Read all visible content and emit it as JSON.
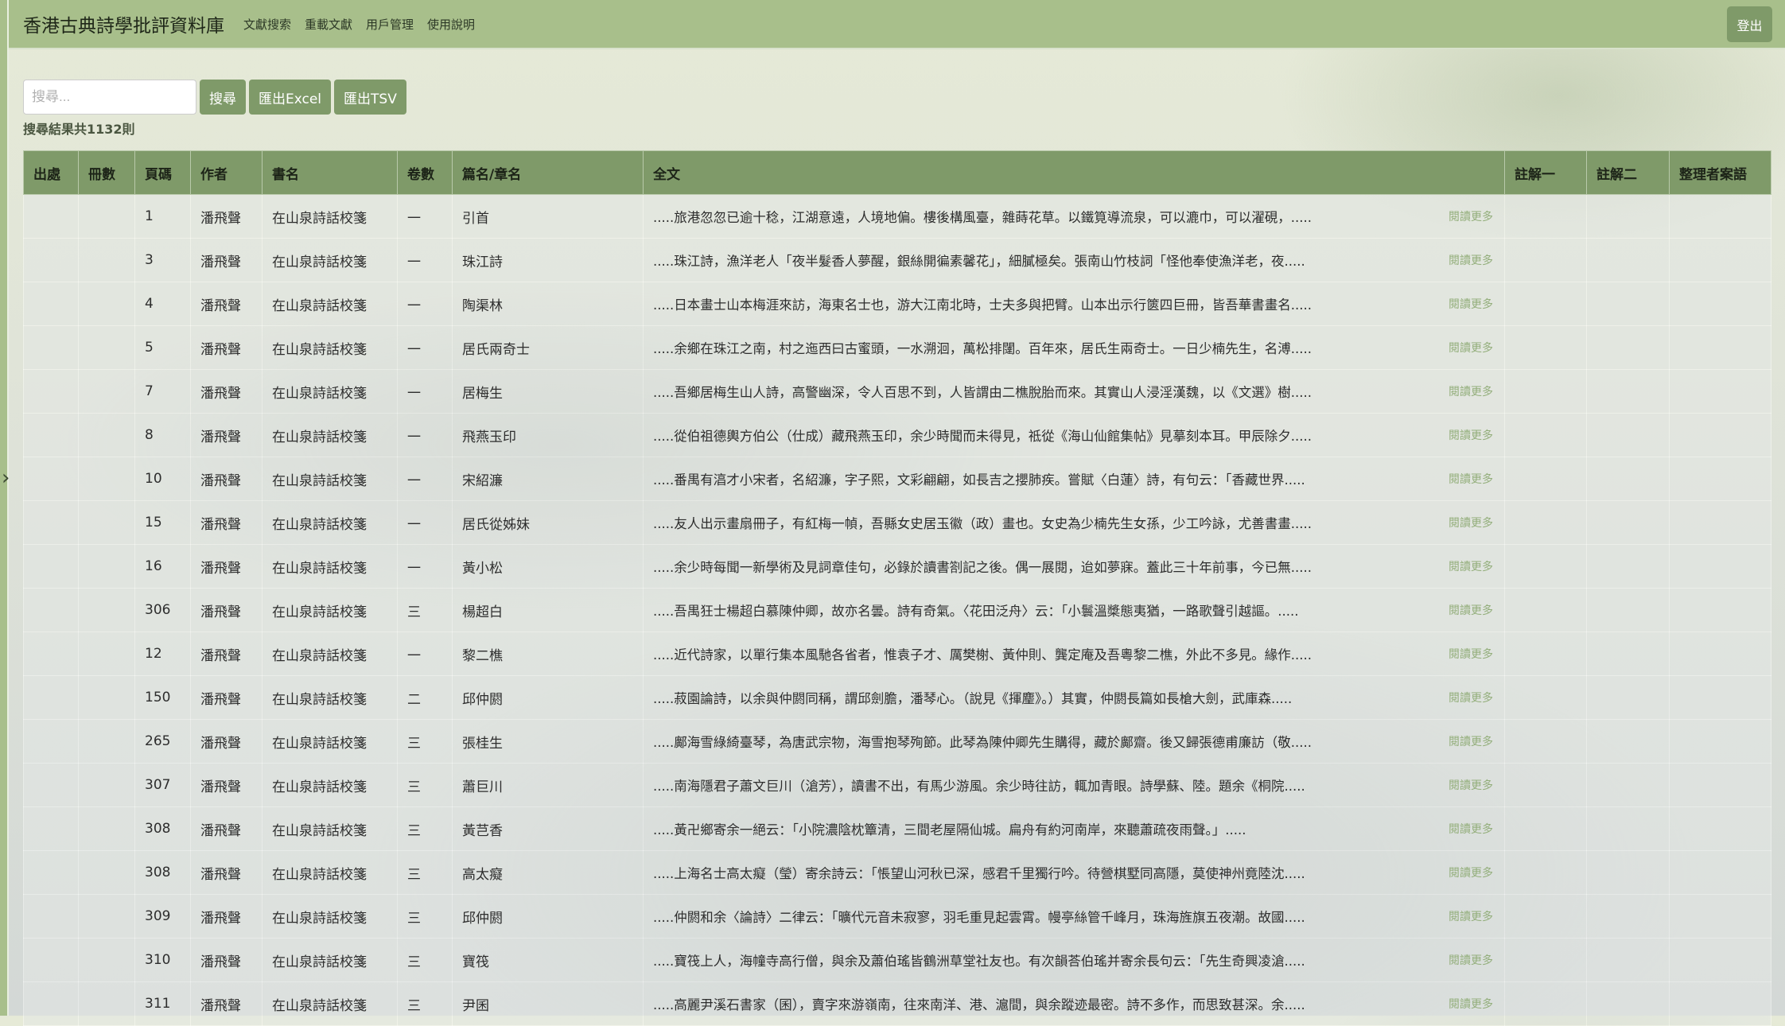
{
  "nav": {
    "title": "香港古典詩學批評資料庫",
    "links": [
      "文獻搜索",
      "重載文獻",
      "用戶管理",
      "使用說明"
    ],
    "logout": "登出"
  },
  "search": {
    "placeholder": "搜尋...",
    "value": "",
    "search_button": "搜尋",
    "export_excel": "匯出Excel",
    "export_tsv": "匯出TSV",
    "result_count": "搜尋結果共1132則"
  },
  "table": {
    "columns": [
      "出處",
      "冊數",
      "頁碼",
      "作者",
      "書名",
      "卷數",
      "篇名/章名",
      "全文",
      "註解一",
      "註解二",
      "整理者案語"
    ],
    "read_more": "閱讀更多",
    "rows": [
      {
        "source": "",
        "volume": "",
        "page": "1",
        "author": "潘飛聲",
        "book": "在山泉詩話校箋",
        "juan": "一",
        "title": "引首",
        "text": ".....旅港忽忽已逾十稔，江湖意遠，人境地偏。樓後構風臺，雜蒔花草。以鐵筧導流泉，可以漉巾，可以濯硯，.....",
        "note1": "",
        "note2": "",
        "editor_note": ""
      },
      {
        "source": "",
        "volume": "",
        "page": "3",
        "author": "潘飛聲",
        "book": "在山泉詩話校箋",
        "juan": "一",
        "title": "珠江詩",
        "text": ".....珠江詩，漁洋老人「夜半髮香人夢醒，銀絲開徧素馨花」，細膩極矣。張南山竹枝詞「怪他奉使漁洋老，夜.....",
        "note1": "",
        "note2": "",
        "editor_note": ""
      },
      {
        "source": "",
        "volume": "",
        "page": "4",
        "author": "潘飛聲",
        "book": "在山泉詩話校箋",
        "juan": "一",
        "title": "陶渠林",
        "text": ".....日本畫士山本梅涯來訪，海東名士也，游大江南北時，士夫多與把臂。山本出示行篋四巨冊，皆吾華書畫名.....",
        "note1": "",
        "note2": "",
        "editor_note": ""
      },
      {
        "source": "",
        "volume": "",
        "page": "5",
        "author": "潘飛聲",
        "book": "在山泉詩話校箋",
        "juan": "一",
        "title": "居氏兩奇士",
        "text": ".....余鄉在珠江之南，村之迤西曰古蜜頭，一水溯洄，萬松排闥。百年來，居氏生兩奇士。一日少楠先生，名溥.....",
        "note1": "",
        "note2": "",
        "editor_note": ""
      },
      {
        "source": "",
        "volume": "",
        "page": "7",
        "author": "潘飛聲",
        "book": "在山泉詩話校箋",
        "juan": "一",
        "title": "居梅生",
        "text": ".....吾鄉居梅生山人詩，高警幽深，令人百思不到，人皆謂由二樵脫胎而來。其實山人浸淫漢魏，以《文選》樹.....",
        "note1": "",
        "note2": "",
        "editor_note": ""
      },
      {
        "source": "",
        "volume": "",
        "page": "8",
        "author": "潘飛聲",
        "book": "在山泉詩話校箋",
        "juan": "一",
        "title": "飛燕玉印",
        "text": ".....從伯祖德輿方伯公（仕成）藏飛燕玉印，余少時聞而未得見，祗從《海山仙館集帖》見摹刻本耳。甲辰除夕.....",
        "note1": "",
        "note2": "",
        "editor_note": ""
      },
      {
        "source": "",
        "volume": "",
        "page": "10",
        "author": "潘飛聲",
        "book": "在山泉詩話校箋",
        "juan": "一",
        "title": "宋紹濂",
        "text": ".....番禺有湻才小宋者，名紹濂，字子熙，文彩翩翩，如長吉之攖肺疾。嘗賦〈白蓮〉詩，有句云：「香藏世界.....",
        "note1": "",
        "note2": "",
        "editor_note": ""
      },
      {
        "source": "",
        "volume": "",
        "page": "15",
        "author": "潘飛聲",
        "book": "在山泉詩話校箋",
        "juan": "一",
        "title": "居氏從姊妹",
        "text": ".....友人出示畫扇冊子，有紅梅一幀，吾縣女史居玉徽（政）畫也。女史為少楠先生女孫，少工吟詠，尤善書畫.....",
        "note1": "",
        "note2": "",
        "editor_note": ""
      },
      {
        "source": "",
        "volume": "",
        "page": "16",
        "author": "潘飛聲",
        "book": "在山泉詩話校箋",
        "juan": "一",
        "title": "黃小松",
        "text": ".....余少時每聞一新學術及見詞章佳句，必錄於讀書劄記之後。偶一展閱，迨如夢寐。蓋此三十年前事，今已無.....",
        "note1": "",
        "note2": "",
        "editor_note": ""
      },
      {
        "source": "",
        "volume": "",
        "page": "306",
        "author": "潘飛聲",
        "book": "在山泉詩話校箋",
        "juan": "三",
        "title": "楊超白",
        "text": ".....吾禺狂士楊超白慕陳仲卿，故亦名曇。詩有奇氣。〈花田泛舟〉云：「小鬟溫槳態夷猶，一路歌聲引越謳。.....",
        "note1": "",
        "note2": "",
        "editor_note": ""
      },
      {
        "source": "",
        "volume": "",
        "page": "12",
        "author": "潘飛聲",
        "book": "在山泉詩話校箋",
        "juan": "一",
        "title": "黎二樵",
        "text": ".....近代詩家，以單行集本風馳各省者，惟袁子才、厲樊榭、黃仲則、龔定庵及吾粵黎二樵，外此不多見。緣作.....",
        "note1": "",
        "note2": "",
        "editor_note": ""
      },
      {
        "source": "",
        "volume": "",
        "page": "150",
        "author": "潘飛聲",
        "book": "在山泉詩話校箋",
        "juan": "二",
        "title": "邱仲閼",
        "text": ".....菽園論詩，以余與仲閼同稱，謂邱劍膽，潘琴心。（說見《揮麈》。）其實，仲閼長篇如長槍大劍，武庫森.....",
        "note1": "",
        "note2": "",
        "editor_note": ""
      },
      {
        "source": "",
        "volume": "",
        "page": "265",
        "author": "潘飛聲",
        "book": "在山泉詩話校箋",
        "juan": "三",
        "title": "張桂生",
        "text": ".....鄺海雪綠綺臺琴，為唐武宗物，海雪抱琴殉節。此琴為陳仲卿先生購得，藏於鄺齋。後又歸張德甫廉訪（敬.....",
        "note1": "",
        "note2": "",
        "editor_note": ""
      },
      {
        "source": "",
        "volume": "",
        "page": "307",
        "author": "潘飛聲",
        "book": "在山泉詩話校箋",
        "juan": "三",
        "title": "蕭巨川",
        "text": ".....南海隱君子蕭文巨川（滄芳），讀書不出，有馬少游風。余少時往訪，輒加青眼。詩學蘇、陸。題余《桐院.....",
        "note1": "",
        "note2": "",
        "editor_note": ""
      },
      {
        "source": "",
        "volume": "",
        "page": "308",
        "author": "潘飛聲",
        "book": "在山泉詩話校箋",
        "juan": "三",
        "title": "黃芑香",
        "text": ".....黃卍鄉寄余一絕云：「小院濃陰枕簟清，三間老屋隔仙城。扁舟有約河南岸，來聽蕭疏夜雨聲。」.....",
        "note1": "",
        "note2": "",
        "editor_note": ""
      },
      {
        "source": "",
        "volume": "",
        "page": "308",
        "author": "潘飛聲",
        "book": "在山泉詩話校箋",
        "juan": "三",
        "title": "高太癡",
        "text": ".....上海名士高太癡（瑩）寄余詩云：「悵望山河秋已深，感君千里獨行吟。待營棋墅同高隱，莫使神州竟陸沈.....",
        "note1": "",
        "note2": "",
        "editor_note": ""
      },
      {
        "source": "",
        "volume": "",
        "page": "309",
        "author": "潘飛聲",
        "book": "在山泉詩話校箋",
        "juan": "三",
        "title": "邱仲閼",
        "text": ".....仲閼和余〈論詩〉二律云：「曠代元音未寂寥，羽毛重見起雲霄。幔亭絲管千峰月，珠海旌旗五夜潮。故國.....",
        "note1": "",
        "note2": "",
        "editor_note": ""
      },
      {
        "source": "",
        "volume": "",
        "page": "310",
        "author": "潘飛聲",
        "book": "在山泉詩話校箋",
        "juan": "三",
        "title": "寶筏",
        "text": ".....寶筏上人，海幢寺高行僧，與余及蕭伯瑤皆鶴洲草堂社友也。有次韻荅伯瑤并寄余長句云：「先生奇興凌滄.....",
        "note1": "",
        "note2": "",
        "editor_note": ""
      },
      {
        "source": "",
        "volume": "",
        "page": "311",
        "author": "潘飛聲",
        "book": "在山泉詩話校箋",
        "juan": "三",
        "title": "尹囷",
        "text": ".....高麗尹溪石書家（囷），賣字來游嶺南，往來南洋、港、滬間，與余蹤迹最密。詩不多作，而思致甚深。余.....",
        "note1": "",
        "note2": "",
        "editor_note": ""
      }
    ]
  },
  "colors": {
    "navbar": "#a8bf8b",
    "accent": "#7f9a69",
    "read_more": "#93ae7b"
  },
  "icons": {
    "sidebar_toggle": "chevron-right-icon"
  }
}
